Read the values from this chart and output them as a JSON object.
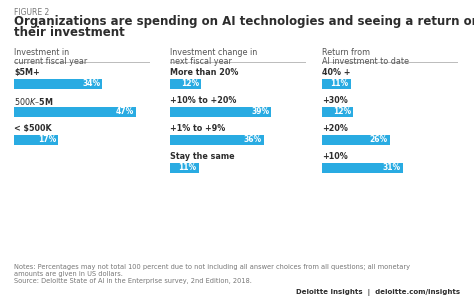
{
  "figure_label": "FIGURE 2",
  "title_line1": "Organizations are spending on AI technologies and seeing a return on",
  "title_line2": "their investment",
  "bar_color": "#29ABE2",
  "text_color_dark": "#2d2d2d",
  "text_color_light": "#777777",
  "background_color": "#FFFFFF",
  "columns": [
    {
      "header_line1": "Investment in",
      "header_line2": "current fiscal year",
      "rows": [
        {
          "label": "$5M+",
          "value": 34,
          "pct": "34%"
        },
        {
          "label": "$500K–$5M",
          "value": 47,
          "pct": "47%"
        },
        {
          "label": "< $500K",
          "value": 17,
          "pct": "17%"
        }
      ]
    },
    {
      "header_line1": "Investment change in",
      "header_line2": "next fiscal year",
      "rows": [
        {
          "label": "More than 20%",
          "value": 12,
          "pct": "12%"
        },
        {
          "label": "+10% to +20%",
          "value": 39,
          "pct": "39%"
        },
        {
          "label": "+1% to +9%",
          "value": 36,
          "pct": "36%"
        },
        {
          "label": "Stay the same",
          "value": 11,
          "pct": "11%"
        }
      ]
    },
    {
      "header_line1": "Return from",
      "header_line2": "AI investment to date",
      "rows": [
        {
          "label": "40% +",
          "value": 11,
          "pct": "11%"
        },
        {
          "label": "+30%",
          "value": 12,
          "pct": "12%"
        },
        {
          "label": "+20%",
          "value": 26,
          "pct": "26%"
        },
        {
          "label": "+10%",
          "value": 31,
          "pct": "31%"
        }
      ]
    }
  ],
  "notes_line1": "Notes: Percentages may not total 100 percent due to not including all answer choices from all questions; all monetary",
  "notes_line2": "amounts are given in US dollars.",
  "notes_line3": "Source: Deloitte State of AI in the Enterprise survey, 2nd Edition, 2018.",
  "footer_right": "Deloitte Insights  |  deloitte.com/insights",
  "divider_color": "#BBBBBB",
  "header_color": "#555555"
}
